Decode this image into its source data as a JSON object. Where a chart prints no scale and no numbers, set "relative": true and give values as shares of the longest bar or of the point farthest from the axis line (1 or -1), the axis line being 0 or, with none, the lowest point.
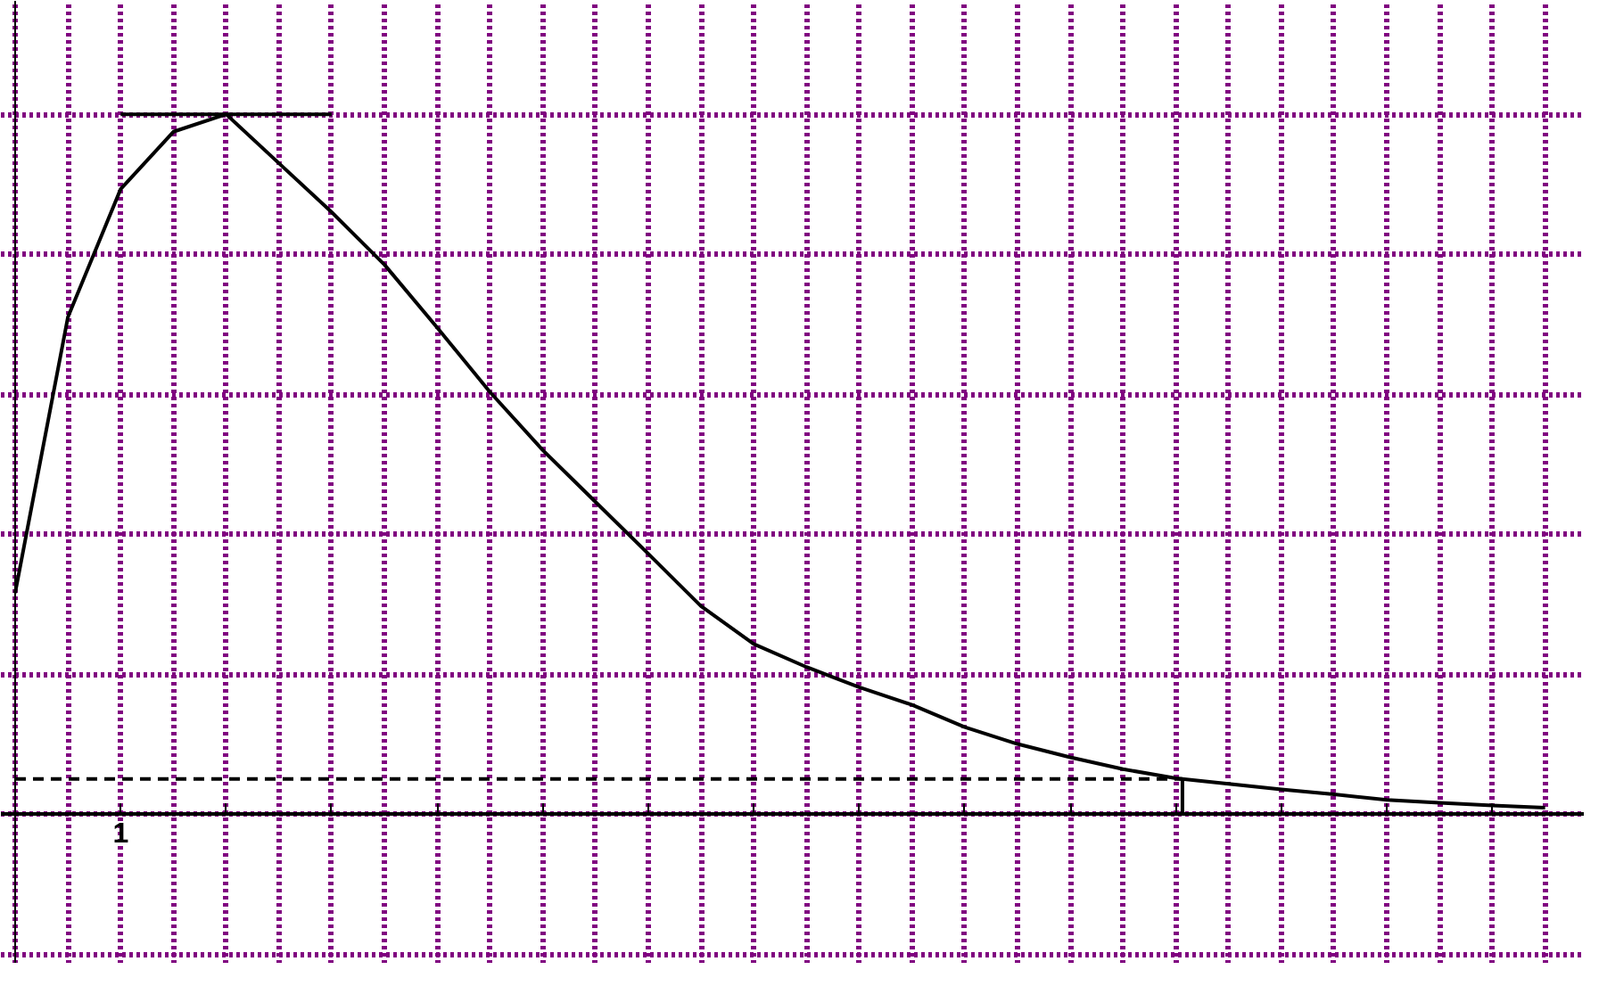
{
  "chart_data": {
    "type": "line",
    "relative": true,
    "grid": true,
    "marker": "none",
    "line_style": "solid",
    "annotations": [
      "1"
    ],
    "categories": [
      null,
      null,
      null,
      null,
      null,
      null,
      null,
      null,
      null,
      null,
      null,
      null,
      null,
      null,
      null,
      null,
      null,
      null,
      null,
      null,
      null,
      null,
      null,
      null,
      null,
      null,
      null,
      null,
      null,
      null
    ],
    "series": [
      {
        "color": "#000000",
        "values": [
          0.316,
          0.71,
          0.893,
          0.975,
          1,
          0.93,
          0.86,
          0.785,
          0.695,
          0.603,
          0.52,
          0.446,
          0.372,
          0.297,
          0.243,
          0.21,
          0.181,
          0.156,
          0.124,
          0.1,
          0.081,
          0.064,
          0.051,
          0.043,
          0.035,
          0.028,
          0.02,
          0.016,
          0.012,
          0.009
        ]
      }
    ],
    "ref_lines": [
      {
        "axis": "y",
        "value": 0.05,
        "label": null,
        "color": "#000000",
        "line_style": "dashed"
      },
      {
        "axis": "y",
        "value": 1,
        "label": null,
        "color": "#000000",
        "line_style": "solid"
      }
    ]
  }
}
